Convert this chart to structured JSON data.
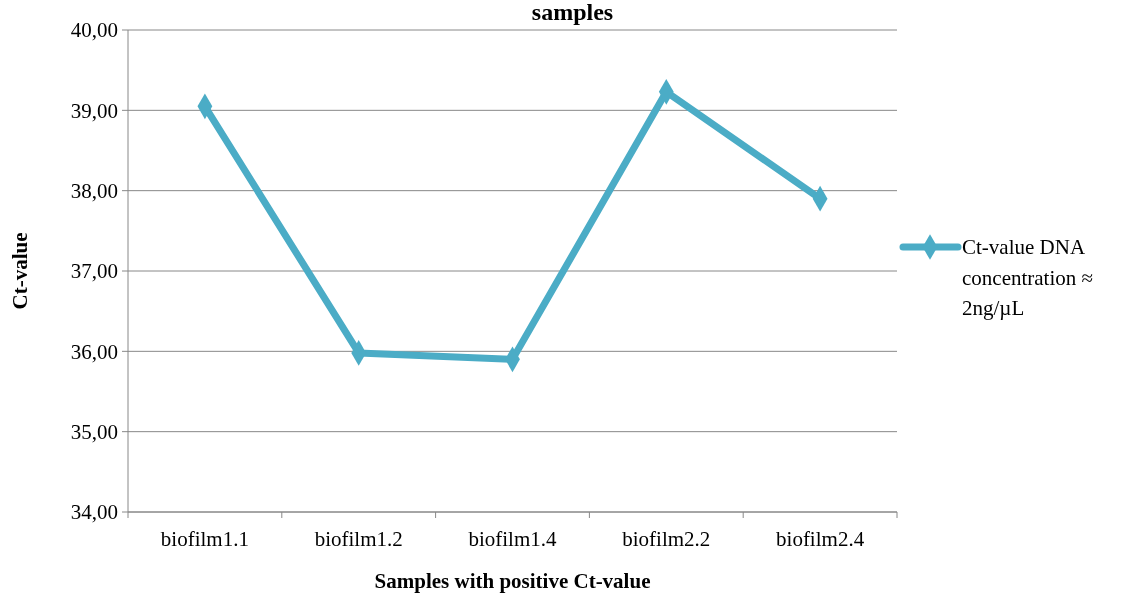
{
  "chart_data": {
    "type": "line",
    "title": "samples",
    "xlabel": "Samples with positive Ct-value",
    "ylabel": "Ct-value",
    "categories": [
      "biofilm1.1",
      "biofilm1.2",
      "biofilm1.4",
      "biofilm2.2",
      "biofilm2.4"
    ],
    "series": [
      {
        "name": "Ct-value DNA concentration ≈ 2ng/µL",
        "color": "#4bacc6",
        "values": [
          39.05,
          35.98,
          35.9,
          39.23,
          37.9
        ]
      }
    ],
    "ylim": [
      34,
      40
    ],
    "yticks": [
      {
        "value": 34,
        "label": "34,00"
      },
      {
        "value": 35,
        "label": "35,00"
      },
      {
        "value": 36,
        "label": "36,00"
      },
      {
        "value": 37,
        "label": "37,00"
      },
      {
        "value": 38,
        "label": "38,00"
      },
      {
        "value": 39,
        "label": "39,00"
      },
      {
        "value": 40,
        "label": "40,00"
      }
    ],
    "grid": "y",
    "legend": "right",
    "marker": "diamond",
    "line_style": "solid"
  }
}
